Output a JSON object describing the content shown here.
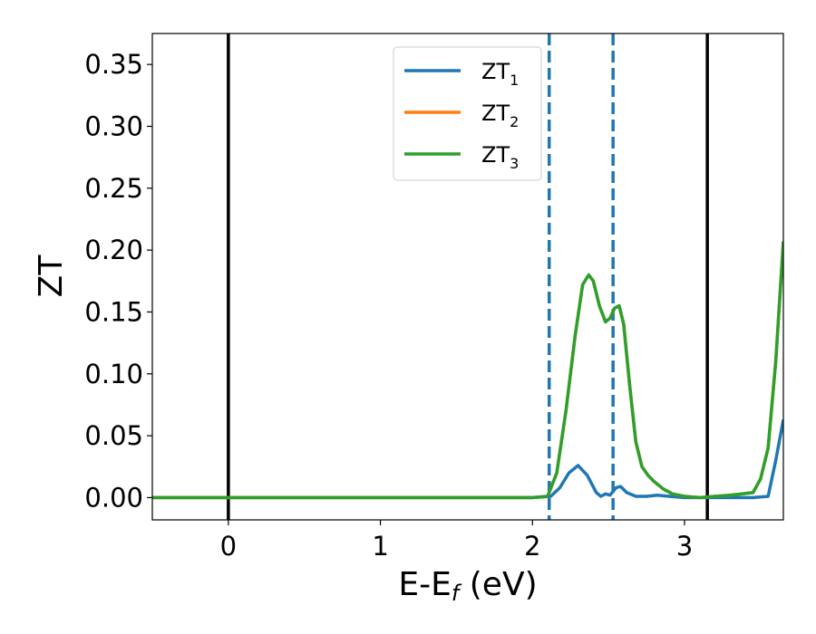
{
  "chart_data": {
    "type": "line",
    "xlabel": {
      "main": "E-E",
      "sub": "f",
      "unit": " (eV)"
    },
    "ylabel": "ZT",
    "xlim": [
      -0.5,
      3.65
    ],
    "ylim": [
      -0.018,
      0.375
    ],
    "xticks": [
      0,
      1,
      2,
      3
    ],
    "yticks": [
      0.0,
      0.05,
      0.1,
      0.15,
      0.2,
      0.25,
      0.3,
      0.35
    ],
    "ytick_labels": [
      "0.00",
      "0.05",
      "0.10",
      "0.15",
      "0.20",
      "0.25",
      "0.30",
      "0.35"
    ],
    "legend_position": "upper-center",
    "vlines_solid": [
      0.0,
      3.15
    ],
    "vlines_dashed": [
      2.11,
      2.53
    ],
    "colors": {
      "ZT1": "#1f77b4",
      "ZT2": "#ff7f0e",
      "ZT3": "#2ca02c",
      "vline": "#000000",
      "dashed": "#1f77b4"
    },
    "series": [
      {
        "name": "ZT",
        "sub": "1",
        "color": "#1f77b4",
        "x": [
          -0.5,
          2.0,
          2.12,
          2.18,
          2.24,
          2.3,
          2.36,
          2.42,
          2.45,
          2.48,
          2.51,
          2.55,
          2.58,
          2.62,
          2.68,
          2.75,
          2.82,
          2.9,
          3.0,
          3.1,
          3.3,
          3.45,
          3.55,
          3.6,
          3.65
        ],
        "y": [
          0.0,
          0.0,
          0.001,
          0.008,
          0.02,
          0.026,
          0.018,
          0.004,
          0.001,
          0.003,
          0.002,
          0.008,
          0.009,
          0.004,
          0.001,
          0.001,
          0.002,
          0.001,
          0.0,
          0.0,
          0.0,
          0.0,
          0.001,
          0.03,
          0.063
        ]
      },
      {
        "name": "ZT",
        "sub": "2",
        "color": "#ff7f0e",
        "x": [
          -0.5,
          2.0,
          2.1,
          2.16,
          2.22,
          2.28,
          2.33,
          2.37,
          2.4,
          2.44,
          2.48,
          2.51,
          2.54,
          2.57,
          2.6,
          2.64,
          2.68,
          2.72,
          2.76,
          2.8,
          2.86,
          2.92,
          3.0,
          3.1,
          3.2,
          3.3,
          3.38,
          3.45,
          3.5,
          3.55,
          3.6,
          3.65
        ],
        "y": [
          0.0,
          0.0,
          0.001,
          0.02,
          0.07,
          0.13,
          0.172,
          0.18,
          0.175,
          0.155,
          0.142,
          0.145,
          0.153,
          0.155,
          0.14,
          0.09,
          0.045,
          0.025,
          0.018,
          0.013,
          0.007,
          0.003,
          0.001,
          0.0,
          0.001,
          0.002,
          0.003,
          0.004,
          0.015,
          0.04,
          0.11,
          0.207
        ]
      },
      {
        "name": "ZT",
        "sub": "3",
        "color": "#2ca02c",
        "x": [
          -0.5,
          2.0,
          2.1,
          2.16,
          2.22,
          2.28,
          2.33,
          2.37,
          2.4,
          2.44,
          2.48,
          2.51,
          2.54,
          2.57,
          2.6,
          2.64,
          2.68,
          2.72,
          2.76,
          2.8,
          2.86,
          2.92,
          3.0,
          3.1,
          3.2,
          3.3,
          3.38,
          3.45,
          3.5,
          3.55,
          3.6,
          3.65
        ],
        "y": [
          0.0,
          0.0,
          0.001,
          0.02,
          0.07,
          0.13,
          0.172,
          0.18,
          0.175,
          0.155,
          0.142,
          0.145,
          0.153,
          0.155,
          0.14,
          0.09,
          0.045,
          0.025,
          0.018,
          0.013,
          0.007,
          0.003,
          0.001,
          0.0,
          0.001,
          0.002,
          0.003,
          0.004,
          0.015,
          0.04,
          0.11,
          0.207
        ]
      }
    ]
  }
}
